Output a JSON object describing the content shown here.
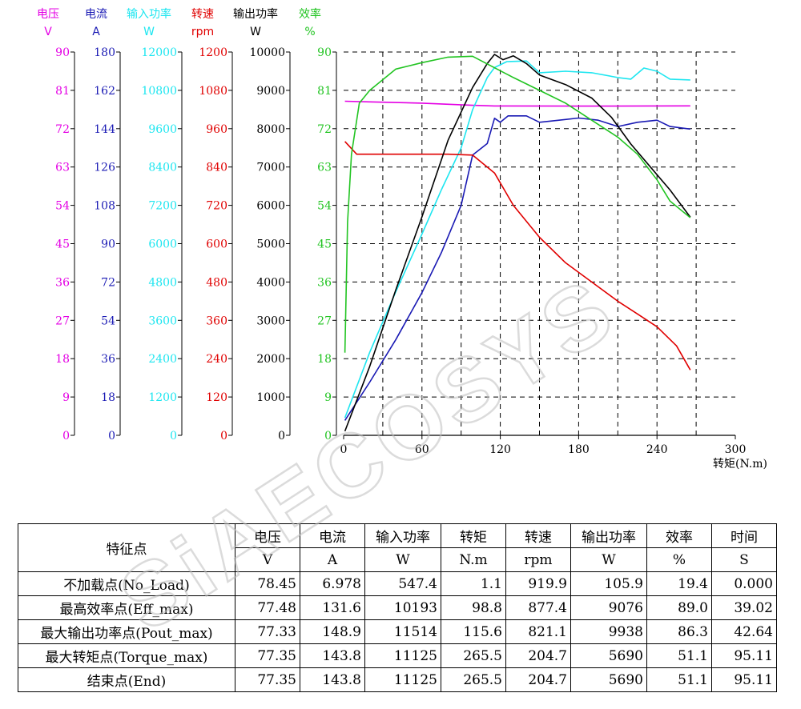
{
  "chart_data": {
    "type": "line",
    "xlabel": "转矩(N.m)",
    "x_ticks": [
      "0",
      "60",
      "120",
      "180",
      "240",
      "300"
    ],
    "xlim": [
      0,
      300
    ],
    "axes": [
      {
        "name": "电压",
        "unit": "V",
        "color": "#e400e4",
        "range": [
          0,
          90
        ],
        "ticks": [
          "0",
          "9",
          "18",
          "27",
          "36",
          "45",
          "54",
          "63",
          "72",
          "81",
          "90"
        ]
      },
      {
        "name": "电流",
        "unit": "A",
        "color": "#1a1ab4",
        "range": [
          0,
          180
        ],
        "ticks": [
          "0",
          "18",
          "36",
          "54",
          "72",
          "90",
          "108",
          "126",
          "144",
          "162",
          "180"
        ]
      },
      {
        "name": "输入功率",
        "unit": "W",
        "color": "#1ee6f0",
        "range": [
          0,
          12000
        ],
        "ticks": [
          "0",
          "1200",
          "2400",
          "3600",
          "4800",
          "6000",
          "7200",
          "8400",
          "9600",
          "10800",
          "12000"
        ]
      },
      {
        "name": "转速",
        "unit": "rpm",
        "color": "#e00000",
        "range": [
          0,
          1200
        ],
        "ticks": [
          "0",
          "120",
          "240",
          "360",
          "480",
          "600",
          "720",
          "840",
          "960",
          "1080",
          "1200"
        ]
      },
      {
        "name": "输出功率",
        "unit": "W",
        "color": "#000000",
        "range": [
          0,
          10000
        ],
        "ticks": [
          "0",
          "1000",
          "2000",
          "3000",
          "4000",
          "5000",
          "6000",
          "7000",
          "8000",
          "9000",
          "10000"
        ]
      },
      {
        "name": "效率",
        "unit": "%",
        "color": "#22c422",
        "range": [
          0,
          90
        ],
        "ticks": [
          "0",
          "9",
          "18",
          "27",
          "36",
          "45",
          "54",
          "63",
          "72",
          "81",
          "90"
        ]
      }
    ],
    "grid": true,
    "series": [
      {
        "name": "电压",
        "axis": 0,
        "color": "#e400e4",
        "points": [
          [
            1,
            78.45
          ],
          [
            20,
            78.3
          ],
          [
            60,
            78.0
          ],
          [
            98.8,
            77.48
          ],
          [
            115.6,
            77.33
          ],
          [
            180,
            77.3
          ],
          [
            265.5,
            77.35
          ]
        ]
      },
      {
        "name": "电流",
        "axis": 1,
        "color": "#1a1ab4",
        "points": [
          [
            1,
            6.978
          ],
          [
            20,
            25
          ],
          [
            40,
            45
          ],
          [
            60,
            67
          ],
          [
            75,
            86
          ],
          [
            90,
            108
          ],
          [
            98.8,
            131.6
          ],
          [
            110,
            137
          ],
          [
            115.6,
            148.9
          ],
          [
            120,
            147
          ],
          [
            126,
            150
          ],
          [
            132,
            150
          ],
          [
            140,
            150
          ],
          [
            150,
            147
          ],
          [
            165,
            148
          ],
          [
            180,
            149
          ],
          [
            195,
            148
          ],
          [
            210,
            145
          ],
          [
            225,
            147
          ],
          [
            240,
            148
          ],
          [
            250,
            145
          ],
          [
            265.5,
            143.8
          ]
        ]
      },
      {
        "name": "输入功率",
        "axis": 2,
        "color": "#1ee6f0",
        "points": [
          [
            1,
            547.4
          ],
          [
            20,
            2600
          ],
          [
            40,
            4500
          ],
          [
            60,
            6300
          ],
          [
            75,
            7700
          ],
          [
            90,
            9000
          ],
          [
            98.8,
            10193
          ],
          [
            110,
            11200
          ],
          [
            115.6,
            11514
          ],
          [
            125,
            11700
          ],
          [
            140,
            11720
          ],
          [
            150,
            11350
          ],
          [
            170,
            11400
          ],
          [
            190,
            11350
          ],
          [
            210,
            11200
          ],
          [
            220,
            11150
          ],
          [
            230,
            11500
          ],
          [
            240,
            11400
          ],
          [
            250,
            11150
          ],
          [
            265.5,
            11125
          ]
        ]
      },
      {
        "name": "转速",
        "axis": 3,
        "color": "#e00000",
        "points": [
          [
            1,
            919.9
          ],
          [
            10,
            880
          ],
          [
            40,
            880
          ],
          [
            80,
            880
          ],
          [
            98.8,
            877.4
          ],
          [
            115.6,
            821.1
          ],
          [
            130,
            720
          ],
          [
            150,
            620
          ],
          [
            170,
            540
          ],
          [
            190,
            480
          ],
          [
            210,
            420
          ],
          [
            225,
            380
          ],
          [
            240,
            340
          ],
          [
            255,
            280
          ],
          [
            265.5,
            204.7
          ]
        ]
      },
      {
        "name": "输出功率",
        "axis": 4,
        "color": "#000000",
        "points": [
          [
            1,
            105.9
          ],
          [
            20,
            1800
          ],
          [
            40,
            3800
          ],
          [
            60,
            5700
          ],
          [
            80,
            7700
          ],
          [
            98.8,
            9076
          ],
          [
            110,
            9700
          ],
          [
            115.6,
            9938
          ],
          [
            122,
            9800
          ],
          [
            130,
            9900
          ],
          [
            140,
            9700
          ],
          [
            150,
            9400
          ],
          [
            170,
            9150
          ],
          [
            190,
            8800
          ],
          [
            205,
            8300
          ],
          [
            220,
            7600
          ],
          [
            235,
            7000
          ],
          [
            250,
            6400
          ],
          [
            265.5,
            5690
          ]
        ]
      },
      {
        "name": "效率",
        "axis": 5,
        "color": "#22c422",
        "points": [
          [
            1,
            19.4
          ],
          [
            3,
            50
          ],
          [
            6,
            66
          ],
          [
            12,
            78
          ],
          [
            20,
            81
          ],
          [
            40,
            86
          ],
          [
            60,
            87.5
          ],
          [
            80,
            88.8
          ],
          [
            98.8,
            89.0
          ],
          [
            115.6,
            86.3
          ],
          [
            130,
            84
          ],
          [
            150,
            81
          ],
          [
            170,
            78
          ],
          [
            190,
            74
          ],
          [
            210,
            70
          ],
          [
            225,
            66
          ],
          [
            240,
            60
          ],
          [
            250,
            55
          ],
          [
            265.5,
            51.1
          ]
        ]
      }
    ]
  },
  "table": {
    "header_top": [
      "特征点",
      "电压",
      "电流",
      "输入功率",
      "转矩",
      "转速",
      "输出功率",
      "效率",
      "时间"
    ],
    "header_units": [
      "V",
      "A",
      "W",
      "N.m",
      "rpm",
      "W",
      "%",
      "S"
    ],
    "rows": [
      [
        "不加载点(No_Load)",
        "78.45",
        "6.978",
        "547.4",
        "1.1",
        "919.9",
        "105.9",
        "19.4",
        "0.000"
      ],
      [
        "最高效率点(Eff_max)",
        "77.48",
        "131.6",
        "10193",
        "98.8",
        "877.4",
        "9076",
        "89.0",
        "39.02"
      ],
      [
        "最大输出功率点(Pout_max)",
        "77.33",
        "148.9",
        "11514",
        "115.6",
        "821.1",
        "9938",
        "86.3",
        "42.64"
      ],
      [
        "最大转矩点(Torque_max)",
        "77.35",
        "143.8",
        "11125",
        "265.5",
        "204.7",
        "5690",
        "51.1",
        "95.11"
      ],
      [
        "结束点(End)",
        "77.35",
        "143.8",
        "11125",
        "265.5",
        "204.7",
        "5690",
        "51.1",
        "95.11"
      ]
    ]
  },
  "watermark": "SiAECOSYS"
}
